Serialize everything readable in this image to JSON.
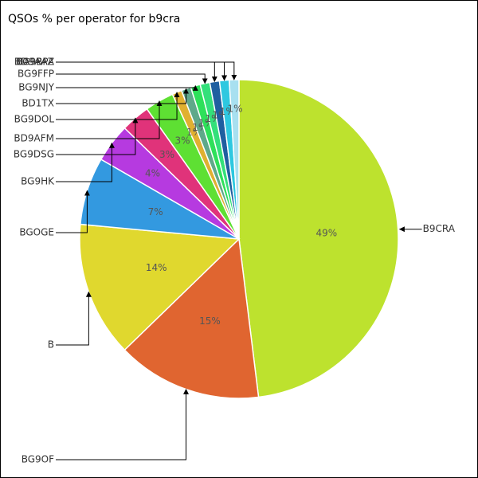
{
  "chart_data": {
    "type": "pie",
    "title": "QSOs % per operator for b9cra",
    "categories": [
      "B9CRA",
      "BG9OF",
      "B",
      "BGOGE",
      "BG9HK",
      "BG9DSG",
      "BD9AFM",
      "BG9DOL",
      "BD1TX",
      "BG9NJY",
      "BG9FFP",
      "BD9AAZ",
      "BG9BPA",
      "BA9PAZ"
    ],
    "values": [
      49,
      15,
      14,
      7,
      4,
      3,
      3,
      1,
      1,
      1,
      1,
      1,
      1,
      1
    ],
    "value_labels": [
      "49%",
      "15%",
      "14%",
      "7%",
      "4%",
      "3%",
      "3%",
      "1%",
      "1%",
      "1%",
      "1%",
      "1%",
      "1%",
      "1%"
    ],
    "colors": [
      "#bde22e",
      "#e06530",
      "#e0d82e",
      "#3399e0",
      "#b63ae0",
      "#e0337a",
      "#5ee033",
      "#e0b030",
      "#5fa88a",
      "#2ee05a",
      "#33e07a",
      "#1f5fa0",
      "#2ec8e0",
      "#a8e0f0"
    ]
  }
}
